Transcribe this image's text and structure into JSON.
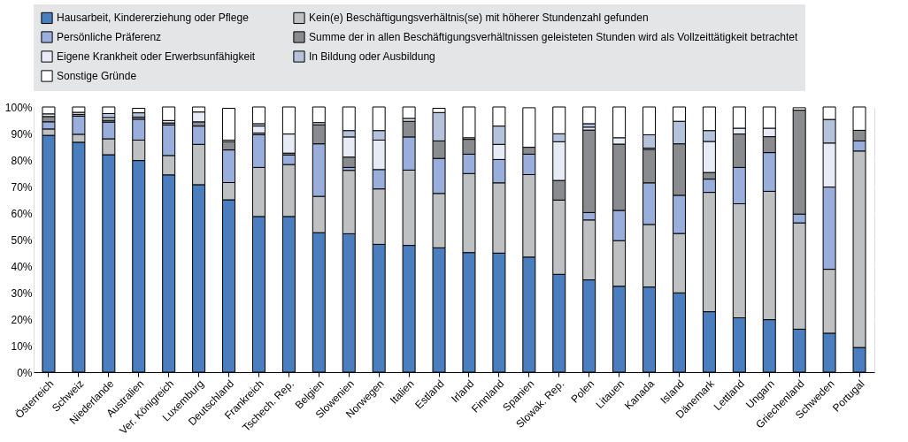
{
  "chart_data": {
    "type": "bar",
    "stacked": true,
    "categories": [
      "Österreich",
      "Schweiz",
      "Niederlande",
      "Australien",
      "Ver. Königreich",
      "Luxemburg",
      "Deutschland",
      "Frankreich",
      "Tschech. Rep.",
      "Belgien",
      "Slowenien",
      "Norwegen",
      "Italien",
      "Estland",
      "Irland",
      "Finnland",
      "Spanien",
      "Slowak. Rep.",
      "Polen",
      "Litauen",
      "Kanada",
      "Island",
      "Dänemark",
      "Lettland",
      "Ungarn",
      "Griechenland",
      "Schweden",
      "Portugal"
    ],
    "series": [
      {
        "name": "Hausarbeit, Kindererziehung oder Pflege",
        "color": "#4a7ebf",
        "values": [
          89.3,
          86.7,
          82,
          79.8,
          74.4,
          70.7,
          65,
          58.7,
          58.7,
          52.6,
          52.2,
          48.2,
          47.8,
          46.9,
          45.1,
          44.9,
          43.4,
          36.9,
          34.8,
          32.4,
          32.1,
          29.9,
          22.8,
          20.5,
          19.8,
          16.2,
          14.7,
          9.3
        ]
      },
      {
        "name": "Kein(e) Beschäftigungsverhältnis(se) mit höherer Stundenzahl gefunden",
        "color": "#bfc0c2",
        "values": [
          2.4,
          3,
          6,
          7.7,
          7.3,
          15.2,
          6.5,
          18.5,
          19.6,
          13.7,
          23.9,
          20.9,
          28.4,
          20.5,
          29.8,
          26.5,
          31.1,
          28,
          22.6,
          17.2,
          23.6,
          22.4,
          45,
          43,
          48.4,
          40.1,
          24.1,
          74.1
        ]
      },
      {
        "name": "Persönliche Präferenz",
        "color": "#9aaedc",
        "values": [
          2.7,
          6.8,
          6.3,
          7.9,
          11.5,
          6.9,
          12.3,
          12.3,
          3.6,
          19.8,
          1.1,
          7.3,
          12.5,
          13.2,
          7.3,
          8.8,
          7.7,
          0,
          2.8,
          11.4,
          15.7,
          14.4,
          5,
          13.7,
          14.6,
          3.3,
          31,
          3.8
        ]
      },
      {
        "name": "Summe der in allen Beschäftigungsverhältnissen geleisteten Stunden wird als Vollzeittätigkeit betrachtet",
        "color": "#8a8b8f",
        "values": [
          2,
          0.7,
          0.7,
          0.8,
          0.8,
          1.6,
          3.1,
          0.7,
          0.7,
          7.2,
          3.9,
          0,
          5.9,
          6.6,
          5.6,
          0,
          2.6,
          7.4,
          31.1,
          25,
          12.6,
          19.4,
          2.5,
          12.6,
          6,
          39.2,
          0,
          4
        ]
      },
      {
        "name": "Eigene Krankheit oder Erwerbsunfähigkeit",
        "color": "#e6ebf5",
        "values": [
          1,
          0.8,
          1,
          null,
          0.9,
          3.7,
          0.6,
          2.6,
          7.2,
          0.8,
          7.6,
          11.1,
          1.1,
          null,
          0.6,
          5.7,
          null,
          14.6,
          1.1,
          2.4,
          0.5,
          0,
          11.7,
          2.2,
          3.2,
          null,
          16.6,
          0
        ]
      },
      {
        "name": "In Bildung oder Ausbildung",
        "color": "#b4c2dc",
        "values": [
          0,
          0,
          1.5,
          1.6,
          0,
          0,
          null,
          0.9,
          0,
          0,
          2.4,
          3.6,
          0,
          10.7,
          0,
          6.9,
          0,
          3,
          1.3,
          0,
          5,
          8.5,
          4.1,
          0,
          0,
          0,
          8.9,
          0
        ]
      },
      {
        "name": "Sonstige Gründe",
        "color": "#ffffff",
        "values": [
          2.6,
          2,
          2.5,
          1.7,
          5.1,
          1.9,
          12,
          6.3,
          10.2,
          5.9,
          8.9,
          8.9,
          4.3,
          1.6,
          11.6,
          7.2,
          14.9,
          10.1,
          6.3,
          11.6,
          10.5,
          5.4,
          8.9,
          8,
          8,
          0.9,
          4.7,
          8.8
        ]
      }
    ],
    "ylim": [
      0,
      100
    ],
    "yticks": [
      {
        "value": 0,
        "label": "0%"
      },
      {
        "value": 10,
        "label": "10%"
      },
      {
        "value": 20,
        "label": "20%"
      },
      {
        "value": 30,
        "label": "30%"
      },
      {
        "value": 40,
        "label": "40%"
      },
      {
        "value": 50,
        "label": "50%"
      },
      {
        "value": 60,
        "label": "60%"
      },
      {
        "value": 70,
        "label": "70%"
      },
      {
        "value": 80,
        "label": "80%"
      },
      {
        "value": 90,
        "label": "90%"
      },
      {
        "value": 100,
        "label": "100%"
      }
    ],
    "grid": "y",
    "legend": "top"
  }
}
